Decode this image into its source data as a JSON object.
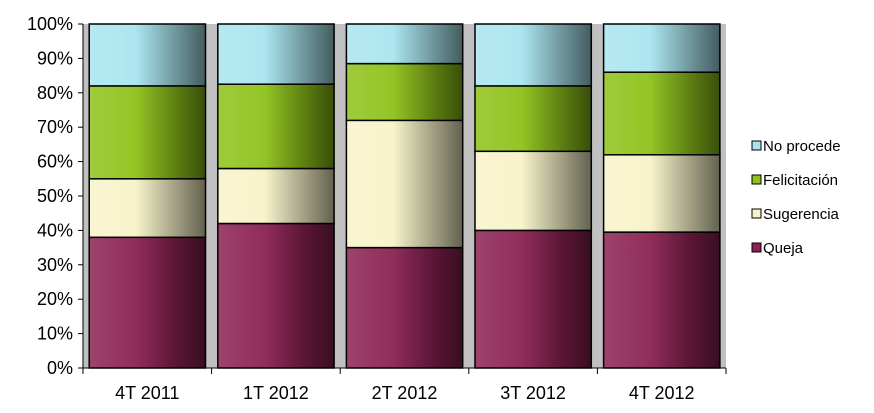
{
  "chart_data": {
    "type": "bar",
    "stacked": true,
    "percent": true,
    "categories": [
      "4T 2011",
      "1T 2012",
      "2T 2012",
      "3T 2012",
      "4T 2012"
    ],
    "series": [
      {
        "name": "Queja",
        "values": [
          38,
          42,
          35,
          40,
          39.5
        ],
        "color": "#8b2252"
      },
      {
        "name": "Sugerencia",
        "values": [
          17,
          16,
          37,
          23,
          22.5
        ],
        "color": "#f7f3c9"
      },
      {
        "name": "Felicitación",
        "values": [
          27,
          24.5,
          16.5,
          19,
          24
        ],
        "color": "#8ec21a"
      },
      {
        "name": "No procede",
        "values": [
          18,
          17.5,
          11.5,
          18,
          14
        ],
        "color": "#a9e5ef"
      }
    ],
    "y_ticks": [
      "0%",
      "10%",
      "20%",
      "30%",
      "40%",
      "50%",
      "60%",
      "70%",
      "80%",
      "90%",
      "100%"
    ],
    "ylim": [
      0,
      100
    ],
    "grid": false,
    "legend": {
      "position": "right",
      "order": [
        "No procede",
        "Felicitación",
        "Sugerencia",
        "Queja"
      ]
    },
    "plot_background": "#c0c0c0",
    "title": "",
    "xlabel": "",
    "ylabel": ""
  }
}
